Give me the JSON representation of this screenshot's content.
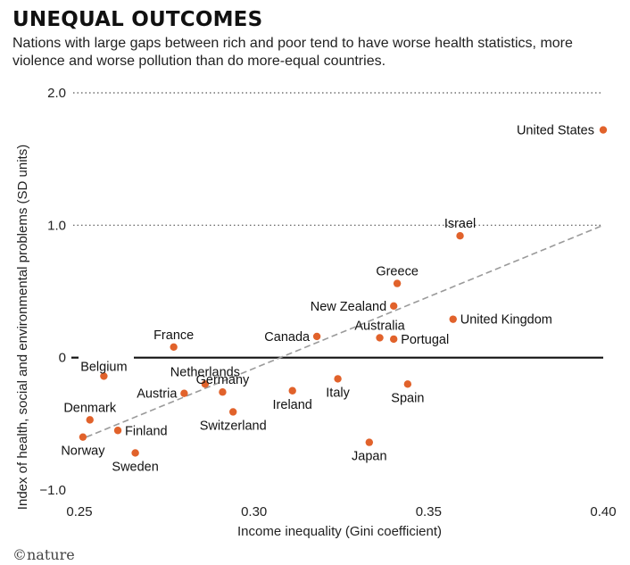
{
  "header": {
    "title": "UNEQUAL OUTCOMES",
    "subtitle": "Nations with large gaps between rich and poor tend to have worse health statistics, more violence and worse pollution than do more-equal countries."
  },
  "footer": {
    "brand": "©nature"
  },
  "colors": {
    "point": "#e1622b",
    "trend": "#9a9a9a",
    "zero_line": "#111111",
    "grid": "#555555"
  },
  "chart_data": {
    "type": "scatter",
    "xlabel": "Income inequality (Gini coefficient)",
    "ylabel": "Index of health, social and environmental problems (SD units)",
    "xlim": [
      0.25,
      0.4
    ],
    "ylim": [
      -1.0,
      2.0
    ],
    "xticks": [
      0.25,
      0.3,
      0.35,
      0.4
    ],
    "xtick_labels": [
      "0.25",
      "0.30",
      "0.35",
      "0.40"
    ],
    "yticks": [
      -1.0,
      0,
      1.0,
      2.0
    ],
    "ytick_labels": [
      "−1.0",
      "0",
      "1.0",
      "2.0"
    ],
    "grid": "dotted horizontal lines at 1.0 and 2.0; solid line at 0",
    "trendline": {
      "x": [
        0.252,
        0.4
      ],
      "y": [
        -0.6,
        1.0
      ]
    },
    "points": [
      {
        "name": "United States",
        "x": 0.4,
        "y": 1.72,
        "label_pos": "left"
      },
      {
        "name": "Israel",
        "x": 0.359,
        "y": 0.92,
        "label_pos": "above"
      },
      {
        "name": "Greece",
        "x": 0.341,
        "y": 0.56,
        "label_pos": "above"
      },
      {
        "name": "New Zealand",
        "x": 0.34,
        "y": 0.39,
        "label_pos": "left"
      },
      {
        "name": "United Kingdom",
        "x": 0.357,
        "y": 0.29,
        "label_pos": "right"
      },
      {
        "name": "Australia",
        "x": 0.336,
        "y": 0.15,
        "label_pos": "above"
      },
      {
        "name": "Portugal",
        "x": 0.34,
        "y": 0.14,
        "label_pos": "right"
      },
      {
        "name": "Canada",
        "x": 0.318,
        "y": 0.16,
        "label_pos": "left"
      },
      {
        "name": "France",
        "x": 0.277,
        "y": 0.08,
        "label_pos": "above"
      },
      {
        "name": "Belgium",
        "x": 0.257,
        "y": -0.14,
        "label_pos": "above"
      },
      {
        "name": "Netherlands",
        "x": 0.286,
        "y": -0.2,
        "label_pos": "above"
      },
      {
        "name": "Germany",
        "x": 0.291,
        "y": -0.26,
        "label_pos": "above"
      },
      {
        "name": "Austria",
        "x": 0.28,
        "y": -0.27,
        "label_pos": "left"
      },
      {
        "name": "Italy",
        "x": 0.324,
        "y": -0.16,
        "label_pos": "below"
      },
      {
        "name": "Ireland",
        "x": 0.311,
        "y": -0.25,
        "label_pos": "below"
      },
      {
        "name": "Spain",
        "x": 0.344,
        "y": -0.2,
        "label_pos": "below"
      },
      {
        "name": "Switzerland",
        "x": 0.294,
        "y": -0.41,
        "label_pos": "below"
      },
      {
        "name": "Denmark",
        "x": 0.253,
        "y": -0.47,
        "label_pos": "above"
      },
      {
        "name": "Finland",
        "x": 0.261,
        "y": -0.55,
        "label_pos": "right"
      },
      {
        "name": "Norway",
        "x": 0.251,
        "y": -0.6,
        "label_pos": "below"
      },
      {
        "name": "Sweden",
        "x": 0.266,
        "y": -0.72,
        "label_pos": "below"
      },
      {
        "name": "Japan",
        "x": 0.333,
        "y": -0.64,
        "label_pos": "below"
      }
    ]
  }
}
